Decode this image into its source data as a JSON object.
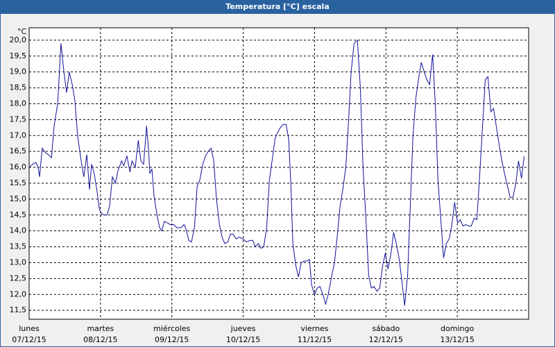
{
  "chart_data": {
    "type": "line",
    "title": "Temperatura [°C] escala",
    "y_label": "°C",
    "x": [
      0,
      1.2,
      2.3,
      3.0,
      3.5,
      4.4,
      5.6,
      6.5,
      7.5,
      8.4,
      9.6,
      10.7,
      11.7,
      12.6,
      13.5,
      14.5,
      15.4,
      16.3,
      17.5,
      18.4,
      19.4,
      20.3,
      21.0,
      21.9,
      22.9,
      23.6,
      24.3,
      25.2,
      26.2,
      27.1,
      28.0,
      29.0,
      29.9,
      31.1,
      31.8,
      32.9,
      33.9,
      34.6,
      35.7,
      36.7,
      37.6,
      38.5,
      39.5,
      40.2,
      40.6,
      41.3,
      42.0,
      43.0,
      43.9,
      44.6,
      45.5,
      46.5,
      47.4,
      48.6,
      49.7,
      51.1,
      52.1,
      52.8,
      53.7,
      54.6,
      55.6,
      56.5,
      57.4,
      58.4,
      59.3,
      60.2,
      61.2,
      62.1,
      63.0,
      64.0,
      64.9,
      65.8,
      66.8,
      67.7,
      68.6,
      69.6,
      70.7,
      71.9,
      73.1,
      74.3,
      75.2,
      76.1,
      77.1,
      78.0,
      78.9,
      79.9,
      80.8,
      81.7,
      82.7,
      83.6,
      84.5,
      85.5,
      86.4,
      87.3,
      88.0,
      88.7,
      89.7,
      90.6,
      91.5,
      92.5,
      93.4,
      94.3,
      95.0,
      96.0,
      96.9,
      97.8,
      98.8,
      99.7,
      100.6,
      101.8,
      102.7,
      103.7,
      104.6,
      105.5,
      106.5,
      107.4,
      108.3,
      109.3,
      110.4,
      111.4,
      112.3,
      113.2,
      114.2,
      115.1,
      116.0,
      117.0,
      117.9,
      118.9,
      119.8,
      120.7,
      121.7,
      122.6,
      123.5,
      124.5,
      125.4,
      126.3,
      127.3,
      128.2,
      129.1,
      130.1,
      131.0,
      131.9,
      132.9,
      133.8,
      134.7,
      135.7,
      136.6,
      137.5,
      138.5,
      139.4,
      140.3,
      141.3,
      142.2,
      143.1,
      144.1,
      145.0,
      145.9,
      146.9,
      147.8,
      148.7,
      149.7,
      150.6,
      151.5,
      152.5,
      153.4,
      154.3,
      155.3,
      156.2,
      157.1,
      158.1,
      159.0,
      159.9,
      160.9,
      161.8,
      162.7,
      163.7,
      164.6,
      165.6,
      166.5
    ],
    "series": [
      {
        "color": "#10109a",
        "values": [
          16.0,
          16.1,
          16.15,
          16.0,
          15.7,
          16.6,
          16.45,
          16.4,
          16.3,
          17.3,
          18.0,
          19.9,
          19.0,
          18.35,
          19.0,
          18.6,
          18.1,
          17.0,
          16.2,
          15.7,
          16.4,
          15.3,
          16.1,
          15.8,
          15.2,
          14.7,
          14.55,
          14.5,
          14.5,
          14.8,
          15.7,
          15.5,
          15.9,
          16.2,
          16.05,
          16.35,
          15.85,
          16.2,
          16.0,
          16.85,
          16.2,
          16.1,
          17.3,
          16.5,
          15.8,
          15.95,
          15.1,
          14.5,
          14.1,
          14.0,
          14.3,
          14.25,
          14.2,
          14.2,
          14.1,
          14.1,
          14.2,
          14.05,
          13.7,
          13.65,
          14.1,
          15.4,
          15.6,
          16.1,
          16.35,
          16.5,
          16.6,
          16.2,
          15.0,
          14.2,
          13.8,
          13.6,
          13.65,
          13.9,
          13.9,
          13.75,
          13.8,
          13.75,
          13.65,
          13.7,
          13.7,
          13.5,
          13.6,
          13.45,
          13.5,
          14.1,
          15.6,
          16.2,
          16.9,
          17.1,
          17.25,
          17.35,
          17.35,
          16.9,
          15.5,
          13.6,
          12.9,
          12.55,
          13.0,
          13.05,
          13.05,
          13.1,
          12.3,
          12.0,
          12.2,
          12.25,
          12.0,
          11.7,
          12.0,
          12.6,
          13.0,
          13.9,
          14.8,
          15.3,
          16.0,
          17.4,
          19.0,
          19.9,
          20.0,
          18.5,
          16.0,
          14.5,
          12.6,
          12.2,
          12.25,
          12.1,
          12.2,
          12.9,
          13.3,
          12.8,
          13.3,
          13.95,
          13.6,
          13.1,
          12.4,
          11.65,
          12.6,
          14.8,
          17.0,
          18.2,
          18.8,
          19.3,
          19.0,
          18.75,
          18.6,
          19.55,
          18.0,
          15.6,
          14.3,
          13.15,
          13.6,
          13.75,
          14.2,
          14.9,
          14.25,
          14.35,
          14.15,
          14.2,
          14.15,
          14.15,
          14.4,
          14.35,
          15.7,
          17.3,
          18.75,
          18.85,
          17.75,
          17.85,
          17.3,
          16.7,
          16.2,
          15.8,
          15.4,
          15.05,
          15.05,
          15.5,
          16.2,
          15.65,
          16.35
        ]
      }
    ],
    "xlim": [
      0,
      168
    ],
    "xticks": [
      {
        "value": 0,
        "label": "lunes",
        "date": "07/12/15"
      },
      {
        "value": 24,
        "label": "martes",
        "date": "08/12/15"
      },
      {
        "value": 48,
        "label": "miércoles",
        "date": "09/12/15"
      },
      {
        "value": 72,
        "label": "jueves",
        "date": "10/12/15"
      },
      {
        "value": 96,
        "label": "viernes",
        "date": "11/12/15"
      },
      {
        "value": 120,
        "label": "sábado",
        "date": "12/12/15"
      },
      {
        "value": 144,
        "label": "domingo",
        "date": "13/12/15"
      }
    ],
    "ylim": [
      11.22,
      20.39
    ],
    "yticks": [
      {
        "value": 11.5,
        "label": "11,5"
      },
      {
        "value": 12,
        "label": "12,0"
      },
      {
        "value": 12.5,
        "label": "12,5"
      },
      {
        "value": 13,
        "label": "13,0"
      },
      {
        "value": 13.5,
        "label": "13,5"
      },
      {
        "value": 14,
        "label": "14,0"
      },
      {
        "value": 14.5,
        "label": "14,5"
      },
      {
        "value": 15,
        "label": "15,0"
      },
      {
        "value": 15.5,
        "label": "15,5"
      },
      {
        "value": 16,
        "label": "16,0"
      },
      {
        "value": 16.5,
        "label": "16,5"
      },
      {
        "value": 17,
        "label": "17,0"
      },
      {
        "value": 17.5,
        "label": "17,5"
      },
      {
        "value": 18,
        "label": "18,0"
      },
      {
        "value": 18.5,
        "label": "18,5"
      },
      {
        "value": 19,
        "label": "19,0"
      },
      {
        "value": 19.5,
        "label": "19,5"
      },
      {
        "value": 20,
        "label": "20,0"
      }
    ],
    "grid": true
  }
}
